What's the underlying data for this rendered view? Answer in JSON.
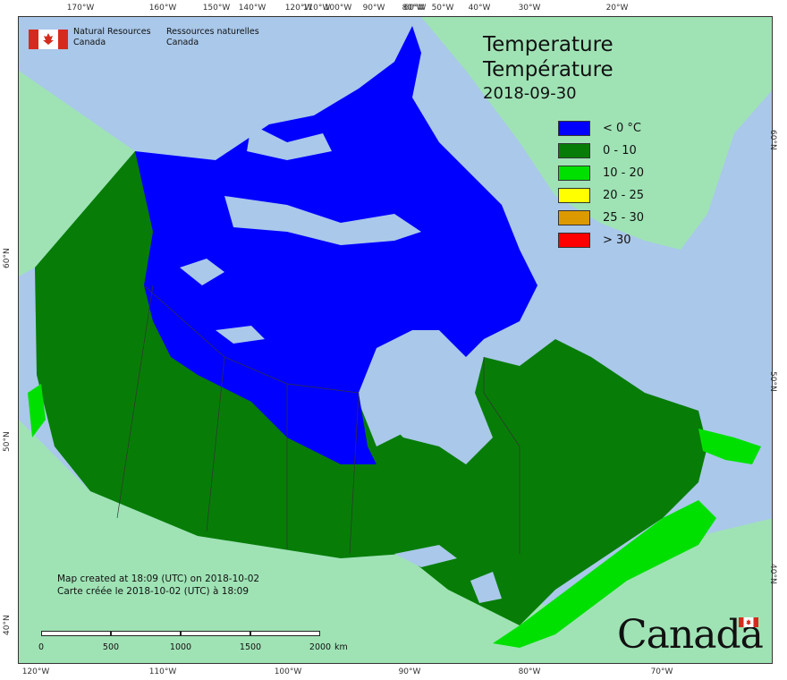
{
  "map": {
    "title_en": "Temperature",
    "title_fr": "Température",
    "date": "2018-09-30",
    "legend": [
      {
        "label": "< 0 °C",
        "color": "#0000ff"
      },
      {
        "label": "0 - 10",
        "color": "#077d07"
      },
      {
        "label": "10 - 20",
        "color": "#00e000"
      },
      {
        "label": "20 - 25",
        "color": "#ffff00"
      },
      {
        "label": "25 - 30",
        "color": "#dd9900"
      },
      {
        "label": "> 30",
        "color": "#ff0000"
      }
    ],
    "colors": {
      "ocean": "#a9c8ea",
      "foreign_land": "#9fe3b5",
      "below_zero": "#0000ff",
      "zero_to_ten": "#077d07",
      "ten_to_twenty": "#00e000",
      "lakes": "#a9c8ea"
    }
  },
  "agency": {
    "name_en_line1": "Natural Resources",
    "name_en_line2": "Canada",
    "name_fr_line1": "Ressources naturelles",
    "name_fr_line2": "Canada"
  },
  "credit": {
    "line_en": "Map created at 18:09 (UTC) on 2018-10-02",
    "line_fr": "Carte créée le 2018-10-02 (UTC) à 18:09"
  },
  "scale": {
    "labels": [
      "0",
      "500",
      "1000",
      "1500",
      "2000"
    ],
    "unit": "km"
  },
  "ticks": {
    "top": [
      "170°W",
      "160°W",
      "150°W",
      "140°W",
      "120°W",
      "110°W",
      "100°W",
      "90°W",
      "80°W",
      "60°W",
      "50°W",
      "40°W",
      "30°W",
      "20°W"
    ],
    "bottom": [
      "120°W",
      "110°W",
      "100°W",
      "90°W",
      "80°W",
      "70°W"
    ],
    "left": [
      "60°N",
      "50°N",
      "40°N"
    ],
    "right": [
      "60°N",
      "50°N",
      "40°N"
    ]
  },
  "wordmark": "Canada"
}
